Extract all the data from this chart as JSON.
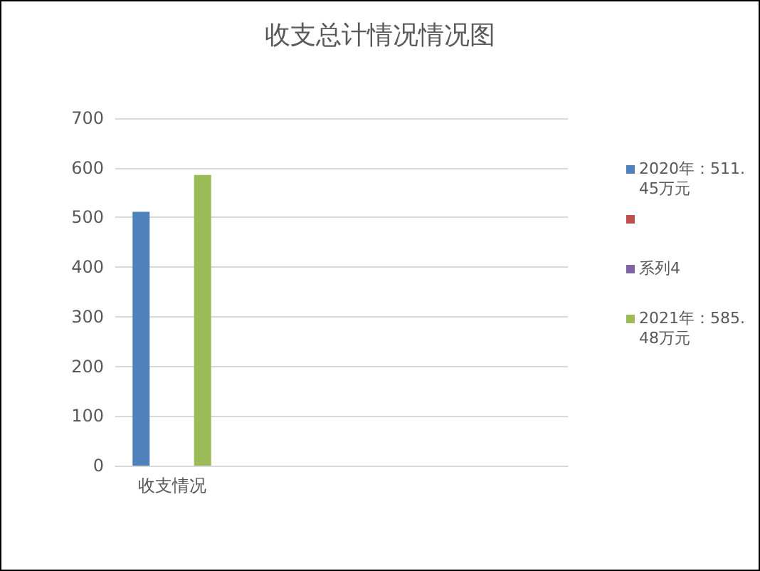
{
  "chart_data": {
    "type": "bar",
    "title": "收支总计情况情况图",
    "categories": [
      "收支情况",
      null,
      null,
      null
    ],
    "series": [
      {
        "name": "2020年：511.45万元",
        "color": "#4f81bd",
        "values": [
          511.45,
          null,
          null,
          null
        ]
      },
      {
        "color": "#c0504d",
        "values": [
          null,
          null,
          null,
          null
        ]
      },
      {
        "name": "系列4",
        "color": "#8064a2",
        "values": [
          null,
          null,
          null,
          null
        ]
      },
      {
        "name": "2021年：585.48万元",
        "color": "#9bbb59",
        "values": [
          585.48,
          null,
          null,
          null
        ]
      }
    ],
    "ylim": [
      0,
      700
    ],
    "yticks": [
      0,
      100,
      200,
      300,
      400,
      500,
      600,
      700
    ],
    "grid": "y",
    "legend": "right"
  }
}
